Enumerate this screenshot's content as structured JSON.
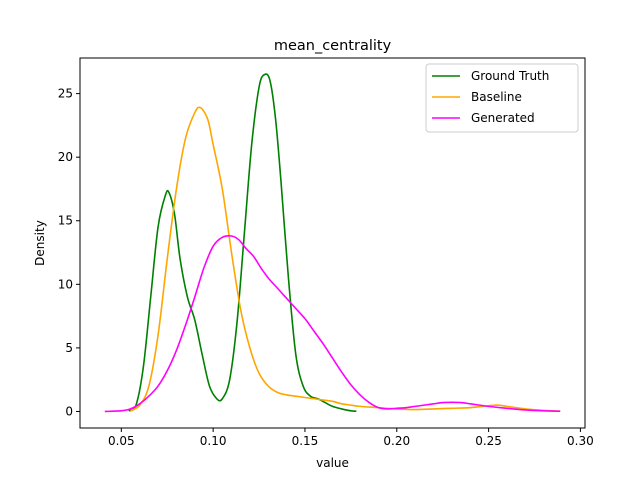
{
  "chart_data": {
    "type": "line",
    "title": "mean_centrality",
    "xlabel": "value",
    "ylabel": "Density",
    "xlim": [
      0.0275,
      0.3025
    ],
    "ylim": [
      -1.3,
      27.8
    ],
    "x_ticks": [
      "0.05",
      "0.10",
      "0.15",
      "0.20",
      "0.25",
      "0.30"
    ],
    "x_tick_values": [
      0.05,
      0.1,
      0.15,
      0.2,
      0.25,
      0.3
    ],
    "y_ticks": [
      "0",
      "5",
      "10",
      "15",
      "20",
      "25"
    ],
    "y_tick_values": [
      0,
      5,
      10,
      15,
      20,
      25
    ],
    "grid": false,
    "legend_position": "top-right",
    "series": [
      {
        "name": "Ground Truth",
        "color": "#008000",
        "x": [
          0.054,
          0.058,
          0.062,
          0.066,
          0.07,
          0.074,
          0.076,
          0.079,
          0.082,
          0.086,
          0.09,
          0.094,
          0.098,
          0.102,
          0.105,
          0.109,
          0.113,
          0.117,
          0.121,
          0.125,
          0.128,
          0.131,
          0.134,
          0.137,
          0.141,
          0.145,
          0.149,
          0.153,
          0.157,
          0.161,
          0.165,
          0.17,
          0.175,
          0.178
        ],
        "y": [
          0.05,
          0.5,
          3.5,
          9,
          14.5,
          17,
          17.2,
          15.5,
          12,
          9,
          7.2,
          4.5,
          2,
          1,
          1,
          2.5,
          7,
          14,
          21,
          25.5,
          26.5,
          26,
          23,
          18,
          10.5,
          4.5,
          2,
          1.2,
          1,
          0.7,
          0.4,
          0.2,
          0.05,
          0.02
        ]
      },
      {
        "name": "Baseline",
        "color": "#ffa500",
        "x": [
          0.055,
          0.06,
          0.065,
          0.07,
          0.075,
          0.08,
          0.085,
          0.09,
          0.093,
          0.097,
          0.1,
          0.105,
          0.11,
          0.115,
          0.12,
          0.125,
          0.13,
          0.135,
          0.14,
          0.145,
          0.15,
          0.155,
          0.16,
          0.165,
          0.17,
          0.175,
          0.18,
          0.19,
          0.2,
          0.21,
          0.22,
          0.23,
          0.24,
          0.25,
          0.255,
          0.26,
          0.27,
          0.28,
          0.289
        ],
        "y": [
          0.05,
          0.5,
          2,
          6,
          12,
          17.5,
          21.5,
          23.5,
          23.9,
          23,
          21,
          17.5,
          12.5,
          8,
          5,
          3,
          2,
          1.5,
          1.3,
          1.2,
          1.1,
          1,
          0.9,
          0.8,
          0.6,
          0.5,
          0.4,
          0.3,
          0.2,
          0.15,
          0.2,
          0.25,
          0.3,
          0.45,
          0.5,
          0.4,
          0.2,
          0.08,
          0.02
        ]
      },
      {
        "name": "Generated",
        "color": "#ff00ff",
        "x": [
          0.041,
          0.05,
          0.055,
          0.06,
          0.065,
          0.07,
          0.075,
          0.08,
          0.085,
          0.09,
          0.095,
          0.1,
          0.105,
          0.11,
          0.114,
          0.118,
          0.122,
          0.126,
          0.13,
          0.135,
          0.14,
          0.145,
          0.15,
          0.155,
          0.16,
          0.165,
          0.17,
          0.175,
          0.18,
          0.185,
          0.19,
          0.195,
          0.2,
          0.205,
          0.21,
          0.215,
          0.22,
          0.225,
          0.23,
          0.235,
          0.24,
          0.245,
          0.25,
          0.26,
          0.27,
          0.28,
          0.289
        ],
        "y": [
          0,
          0.05,
          0.2,
          0.6,
          1.2,
          2,
          3.2,
          4.8,
          6.8,
          9,
          11.3,
          13,
          13.7,
          13.8,
          13.5,
          12.8,
          12.2,
          11.3,
          10.5,
          9.7,
          8.9,
          8.1,
          7.3,
          6.3,
          5.3,
          4.2,
          3.1,
          2.1,
          1.3,
          0.7,
          0.3,
          0.2,
          0.25,
          0.3,
          0.4,
          0.5,
          0.6,
          0.7,
          0.72,
          0.7,
          0.6,
          0.5,
          0.4,
          0.25,
          0.12,
          0.05,
          0.02
        ]
      }
    ]
  }
}
